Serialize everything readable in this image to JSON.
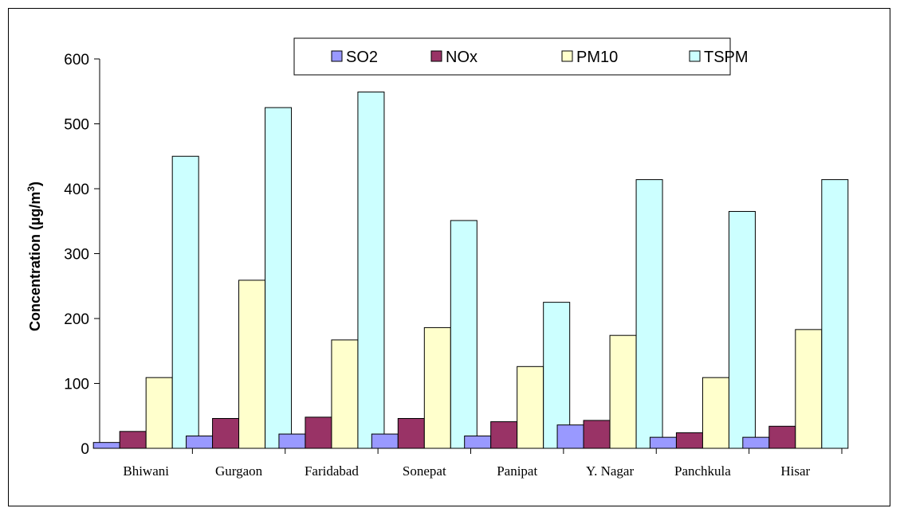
{
  "chart_data": {
    "type": "bar",
    "categories": [
      "Bhiwani",
      "Gurgaon",
      "Faridabad",
      "Sonepat",
      "Panipat",
      "Y. Nagar",
      "Panchkula",
      "Hisar"
    ],
    "series": [
      {
        "name": "SO2",
        "color": "#9999ff",
        "values": [
          9,
          19,
          22,
          22,
          19,
          36,
          17,
          17
        ]
      },
      {
        "name": "NOx",
        "color": "#993366",
        "values": [
          26,
          46,
          48,
          46,
          41,
          43,
          24,
          34
        ]
      },
      {
        "name": "PM10",
        "color": "#ffffcc",
        "values": [
          109,
          259,
          167,
          186,
          126,
          174,
          109,
          183
        ]
      },
      {
        "name": "TSPM",
        "color": "#ccffff",
        "values": [
          450,
          525,
          549,
          351,
          225,
          414,
          365,
          414
        ]
      }
    ],
    "ylabel": "Concentration (µg/m",
    "ylabel_sup": "3",
    "ylabel_end": ")",
    "ylim": [
      0,
      600
    ],
    "yticks": [
      "0",
      "100",
      "200",
      "300",
      "400",
      "500",
      "600"
    ],
    "legend_position": "top-right",
    "grid": false
  }
}
